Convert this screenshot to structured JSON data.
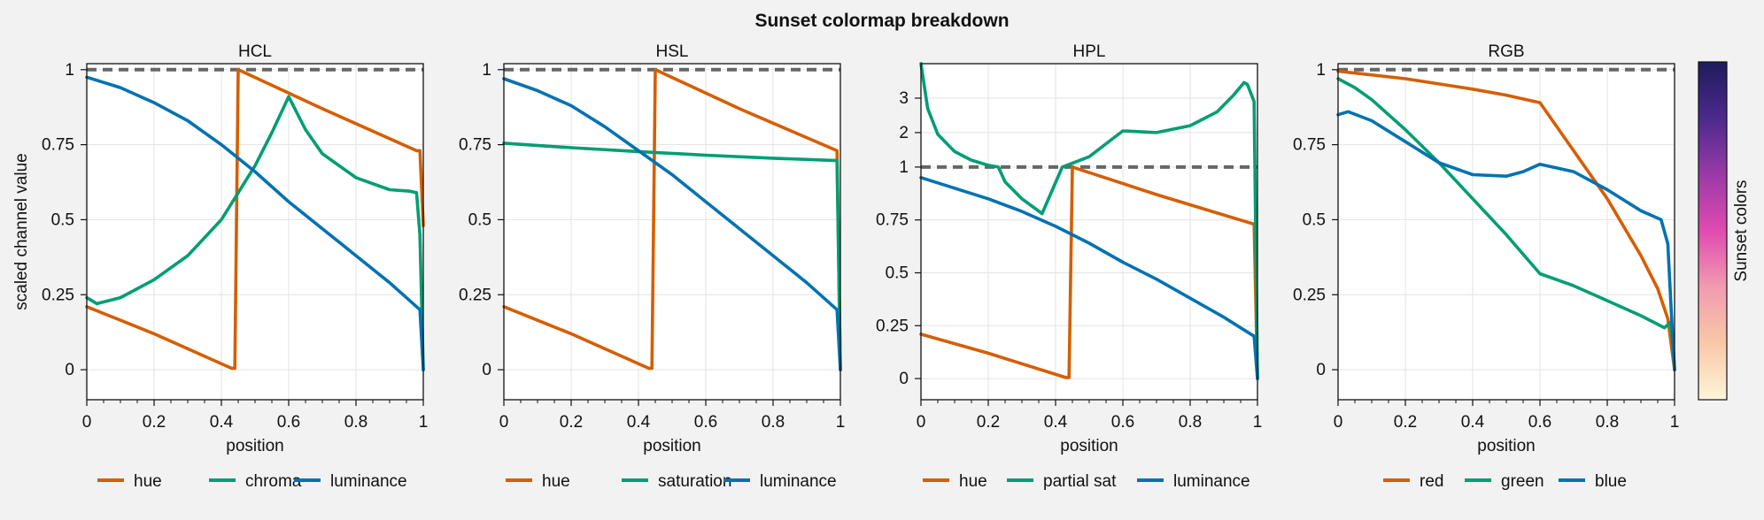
{
  "figure": {
    "suptitle": "Sunset colormap breakdown",
    "colorbar_label": "Sunset colors",
    "colors": {
      "orange": "#d55e00",
      "green": "#009e73",
      "blue": "#0072b2",
      "reference": "#666666"
    },
    "colorbar_stops": [
      "#fdf5d8",
      "#f9c8a8",
      "#f19bb0",
      "#e04bb0",
      "#9a3aa7",
      "#4b2a8c",
      "#1f1b5c"
    ]
  },
  "chart_data": [
    {
      "type": "line",
      "title": "HCL",
      "xlabel": "position",
      "ylabel": "scaled channel value",
      "xlim": [
        0,
        1
      ],
      "ylim": [
        -0.1,
        1.02
      ],
      "xticks": [
        "0",
        "0.2",
        "0.4",
        "0.6",
        "0.8",
        "1"
      ],
      "yticks": [
        "0",
        "0.25",
        "0.5",
        "0.75",
        "1"
      ],
      "grid": true,
      "reference_line": 1,
      "series": [
        {
          "name": "hue",
          "color": "orange",
          "x": [
            0,
            0.2,
            0.43,
            0.44,
            0.45,
            0.7,
            0.98,
            0.99,
            1.0
          ],
          "y": [
            0.21,
            0.12,
            0.005,
            0.005,
            1.0,
            0.87,
            0.73,
            0.73,
            0.48
          ]
        },
        {
          "name": "chroma",
          "color": "green",
          "x": [
            0,
            0.03,
            0.1,
            0.2,
            0.3,
            0.4,
            0.5,
            0.55,
            0.6,
            0.65,
            0.7,
            0.8,
            0.9,
            0.96,
            0.98,
            0.99,
            1.0
          ],
          "y": [
            0.24,
            0.22,
            0.24,
            0.3,
            0.38,
            0.5,
            0.68,
            0.79,
            0.91,
            0.8,
            0.72,
            0.64,
            0.6,
            0.595,
            0.59,
            0.45,
            0.0
          ]
        },
        {
          "name": "luminance",
          "color": "blue",
          "x": [
            0,
            0.1,
            0.2,
            0.3,
            0.4,
            0.5,
            0.6,
            0.7,
            0.8,
            0.9,
            0.99,
            1.0
          ],
          "y": [
            0.975,
            0.94,
            0.89,
            0.83,
            0.75,
            0.66,
            0.56,
            0.47,
            0.38,
            0.29,
            0.2,
            0.0
          ]
        }
      ]
    },
    {
      "type": "line",
      "title": "HSL",
      "xlabel": "position",
      "ylabel": "",
      "xlim": [
        0,
        1
      ],
      "ylim": [
        -0.1,
        1.02
      ],
      "xticks": [
        "0",
        "0.2",
        "0.4",
        "0.6",
        "0.8",
        "1"
      ],
      "yticks": [
        "0",
        "0.25",
        "0.5",
        "0.75",
        "1"
      ],
      "grid": true,
      "reference_line": 1,
      "series": [
        {
          "name": "hue",
          "color": "orange",
          "x": [
            0,
            0.2,
            0.43,
            0.44,
            0.45,
            0.7,
            0.99,
            1.0
          ],
          "y": [
            0.21,
            0.12,
            0.005,
            0.005,
            1.0,
            0.87,
            0.73,
            0.0
          ]
        },
        {
          "name": "saturation",
          "color": "green",
          "x": [
            0,
            0.2,
            0.4,
            0.6,
            0.8,
            0.99,
            1.0
          ],
          "y": [
            0.755,
            0.74,
            0.727,
            0.715,
            0.705,
            0.697,
            0.0
          ]
        },
        {
          "name": "luminance",
          "color": "blue",
          "x": [
            0,
            0.1,
            0.2,
            0.3,
            0.4,
            0.5,
            0.6,
            0.7,
            0.8,
            0.9,
            0.99,
            1.0
          ],
          "y": [
            0.97,
            0.93,
            0.88,
            0.81,
            0.73,
            0.65,
            0.56,
            0.47,
            0.38,
            0.29,
            0.2,
            0.0
          ]
        }
      ]
    },
    {
      "type": "line",
      "title": "HPL",
      "xlabel": "position",
      "ylabel": "",
      "xlim": [
        0,
        1
      ],
      "y_scale": "piecewise: linear 0–1 then linear 1–4",
      "ylim": [
        -0.1,
        4
      ],
      "xticks": [
        "0",
        "0.2",
        "0.4",
        "0.6",
        "0.8",
        "1"
      ],
      "yticks": [
        "0",
        "0.25",
        "0.5",
        "0.75",
        "1",
        "2",
        "3"
      ],
      "grid": true,
      "reference_line": 1,
      "series": [
        {
          "name": "hue",
          "color": "orange",
          "x": [
            0,
            0.2,
            0.43,
            0.44,
            0.45,
            0.7,
            0.99,
            1.0
          ],
          "y": [
            0.21,
            0.12,
            0.005,
            0.005,
            1.0,
            0.87,
            0.73,
            0.0
          ]
        },
        {
          "name": "partial sat",
          "color": "green",
          "x": [
            0,
            0.02,
            0.05,
            0.1,
            0.15,
            0.2,
            0.23,
            0.25,
            0.3,
            0.36,
            0.42,
            0.5,
            0.6,
            0.7,
            0.8,
            0.88,
            0.93,
            0.96,
            0.97,
            0.99,
            1.0
          ],
          "y": [
            4.0,
            2.7,
            1.95,
            1.45,
            1.2,
            1.05,
            1.0,
            0.93,
            0.85,
            0.78,
            1.0,
            1.3,
            2.05,
            2.0,
            2.2,
            2.6,
            3.1,
            3.45,
            3.4,
            2.9,
            0.0
          ]
        },
        {
          "name": "luminance",
          "color": "blue",
          "x": [
            0,
            0.1,
            0.2,
            0.3,
            0.4,
            0.5,
            0.6,
            0.7,
            0.8,
            0.9,
            0.99,
            1.0
          ],
          "y": [
            0.95,
            0.9,
            0.85,
            0.79,
            0.72,
            0.64,
            0.55,
            0.47,
            0.38,
            0.29,
            0.2,
            0.0
          ]
        }
      ]
    },
    {
      "type": "line",
      "title": "RGB",
      "xlabel": "position",
      "ylabel": "",
      "xlim": [
        0,
        1
      ],
      "ylim": [
        -0.1,
        1.02
      ],
      "xticks": [
        "0",
        "0.2",
        "0.4",
        "0.6",
        "0.8",
        "1"
      ],
      "yticks": [
        "0",
        "0.25",
        "0.5",
        "0.75",
        "1"
      ],
      "grid": true,
      "reference_line": 1,
      "series": [
        {
          "name": "red",
          "color": "orange",
          "x": [
            0,
            0.2,
            0.4,
            0.5,
            0.6,
            0.7,
            0.8,
            0.9,
            0.95,
            0.98,
            1.0
          ],
          "y": [
            0.995,
            0.97,
            0.935,
            0.915,
            0.89,
            0.73,
            0.57,
            0.38,
            0.27,
            0.17,
            0.0
          ]
        },
        {
          "name": "green",
          "color": "green",
          "x": [
            0,
            0.05,
            0.1,
            0.2,
            0.3,
            0.4,
            0.5,
            0.6,
            0.7,
            0.8,
            0.9,
            0.97,
            0.99,
            1.0
          ],
          "y": [
            0.97,
            0.94,
            0.9,
            0.8,
            0.69,
            0.57,
            0.45,
            0.32,
            0.28,
            0.23,
            0.18,
            0.14,
            0.16,
            0.0
          ]
        },
        {
          "name": "blue",
          "color": "blue",
          "x": [
            0,
            0.03,
            0.1,
            0.2,
            0.3,
            0.4,
            0.5,
            0.55,
            0.6,
            0.7,
            0.8,
            0.9,
            0.96,
            0.98,
            0.99,
            1.0
          ],
          "y": [
            0.85,
            0.86,
            0.83,
            0.76,
            0.69,
            0.65,
            0.645,
            0.66,
            0.685,
            0.66,
            0.6,
            0.53,
            0.5,
            0.42,
            0.2,
            0.0
          ]
        }
      ]
    }
  ]
}
